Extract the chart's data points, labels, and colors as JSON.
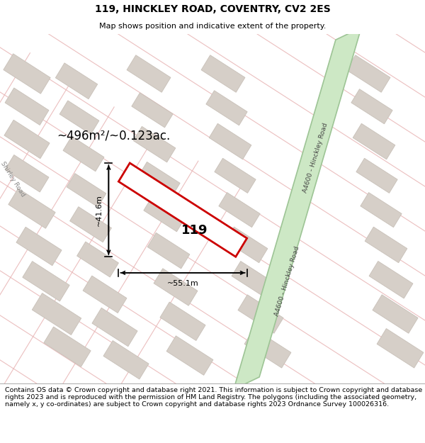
{
  "title": "119, HINCKLEY ROAD, COVENTRY, CV2 2ES",
  "subtitle": "Map shows position and indicative extent of the property.",
  "footer": "Contains OS data © Crown copyright and database right 2021. This information is subject to Crown copyright and database rights 2023 and is reproduced with the permission of HM Land Registry. The polygons (including the associated geometry, namely x, y co-ordinates) are subject to Crown copyright and database rights 2023 Ordnance Survey 100026316.",
  "map_bg": "#f2ede9",
  "road_color": "#e8b4b4",
  "block_fill": "#d6cfc8",
  "block_edge": "#c8c0b8",
  "property_fill": "#ffffff",
  "property_edge": "#cc0000",
  "green_road_fill": "#cde8c5",
  "green_road_edge": "#9dc495",
  "area_text": "~496m²/~0.123ac.",
  "width_text": "~55.1m",
  "height_text": "~41.6m",
  "number_text": "119",
  "road_label": "A4600 - Hinckley Road",
  "shirley_label": "Shirley Road",
  "title_fontsize": 10,
  "subtitle_fontsize": 8,
  "footer_fontsize": 6.8,
  "annotation_fontsize": 12,
  "dim_fontsize": 8,
  "num_fontsize": 13
}
